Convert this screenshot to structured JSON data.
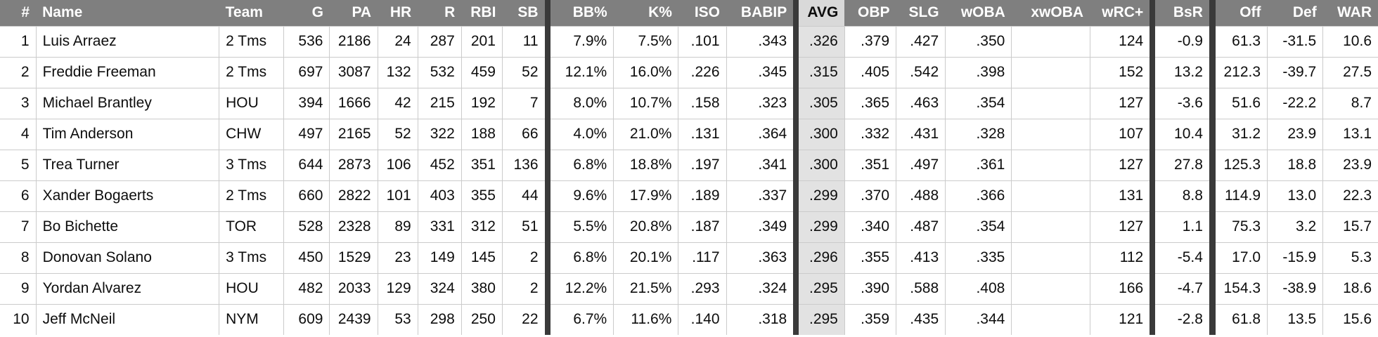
{
  "table": {
    "description": "Batting statistics leaderboard sorted by AVG",
    "sorted_column": "AVG",
    "colors": {
      "header_bg": "#7f7f7f",
      "header_text": "#ffffff",
      "sorted_header_bg": "#d9d9d9",
      "sorted_column_bg": "#e2e2e2",
      "group_separator": "#3a3a3a",
      "cell_border": "#cbcbcb",
      "row_bg": "#ffffff"
    },
    "columns": [
      {
        "key": "rank",
        "label": "#",
        "align": "right",
        "highlight": false,
        "sep_left": false,
        "sep_right": false
      },
      {
        "key": "name",
        "label": "Name",
        "align": "left",
        "highlight": false,
        "sep_left": false,
        "sep_right": false
      },
      {
        "key": "team",
        "label": "Team",
        "align": "left",
        "highlight": false,
        "sep_left": false,
        "sep_right": false
      },
      {
        "key": "g",
        "label": "G",
        "align": "right",
        "highlight": false,
        "sep_left": false,
        "sep_right": false
      },
      {
        "key": "pa",
        "label": "PA",
        "align": "right",
        "highlight": false,
        "sep_left": false,
        "sep_right": false
      },
      {
        "key": "hr",
        "label": "HR",
        "align": "right",
        "highlight": false,
        "sep_left": false,
        "sep_right": false
      },
      {
        "key": "r",
        "label": "R",
        "align": "right",
        "highlight": false,
        "sep_left": false,
        "sep_right": false
      },
      {
        "key": "rbi",
        "label": "RBI",
        "align": "right",
        "highlight": false,
        "sep_left": false,
        "sep_right": false
      },
      {
        "key": "sb",
        "label": "SB",
        "align": "right",
        "highlight": false,
        "sep_left": false,
        "sep_right": false
      },
      {
        "key": "bb_pct",
        "label": "BB%",
        "align": "right",
        "highlight": false,
        "sep_left": true,
        "sep_right": false
      },
      {
        "key": "k_pct",
        "label": "K%",
        "align": "right",
        "highlight": false,
        "sep_left": false,
        "sep_right": false
      },
      {
        "key": "iso",
        "label": "ISO",
        "align": "right",
        "highlight": false,
        "sep_left": false,
        "sep_right": false
      },
      {
        "key": "babip",
        "label": "BABIP",
        "align": "right",
        "highlight": false,
        "sep_left": false,
        "sep_right": false
      },
      {
        "key": "avg",
        "label": "AVG",
        "align": "right",
        "highlight": true,
        "sep_left": true,
        "sep_right": false
      },
      {
        "key": "obp",
        "label": "OBP",
        "align": "right",
        "highlight": false,
        "sep_left": false,
        "sep_right": false
      },
      {
        "key": "slg",
        "label": "SLG",
        "align": "right",
        "highlight": false,
        "sep_left": false,
        "sep_right": false
      },
      {
        "key": "woba",
        "label": "wOBA",
        "align": "right",
        "highlight": false,
        "sep_left": false,
        "sep_right": false
      },
      {
        "key": "xwoba",
        "label": "xwOBA",
        "align": "right",
        "highlight": false,
        "sep_left": false,
        "sep_right": false
      },
      {
        "key": "wrc_plus",
        "label": "wRC+",
        "align": "right",
        "highlight": false,
        "sep_left": false,
        "sep_right": false
      },
      {
        "key": "bsr",
        "label": "BsR",
        "align": "right",
        "highlight": false,
        "sep_left": true,
        "sep_right": true
      },
      {
        "key": "off",
        "label": "Off",
        "align": "right",
        "highlight": false,
        "sep_left": false,
        "sep_right": false
      },
      {
        "key": "def",
        "label": "Def",
        "align": "right",
        "highlight": false,
        "sep_left": false,
        "sep_right": false
      },
      {
        "key": "war",
        "label": "WAR",
        "align": "right",
        "highlight": false,
        "sep_left": false,
        "sep_right": false
      }
    ],
    "rows": [
      [
        "1",
        "Luis Arraez",
        "2 Tms",
        "536",
        "2186",
        "24",
        "287",
        "201",
        "11",
        "7.9%",
        "7.5%",
        ".101",
        ".343",
        ".326",
        ".379",
        ".427",
        ".350",
        "",
        "124",
        "-0.9",
        "61.3",
        "-31.5",
        "10.6"
      ],
      [
        "2",
        "Freddie Freeman",
        "2 Tms",
        "697",
        "3087",
        "132",
        "532",
        "459",
        "52",
        "12.1%",
        "16.0%",
        ".226",
        ".345",
        ".315",
        ".405",
        ".542",
        ".398",
        "",
        "152",
        "13.2",
        "212.3",
        "-39.7",
        "27.5"
      ],
      [
        "3",
        "Michael Brantley",
        "HOU",
        "394",
        "1666",
        "42",
        "215",
        "192",
        "7",
        "8.0%",
        "10.7%",
        ".158",
        ".323",
        ".305",
        ".365",
        ".463",
        ".354",
        "",
        "127",
        "-3.6",
        "51.6",
        "-22.2",
        "8.7"
      ],
      [
        "4",
        "Tim Anderson",
        "CHW",
        "497",
        "2165",
        "52",
        "322",
        "188",
        "66",
        "4.0%",
        "21.0%",
        ".131",
        ".364",
        ".300",
        ".332",
        ".431",
        ".328",
        "",
        "107",
        "10.4",
        "31.2",
        "23.9",
        "13.1"
      ],
      [
        "5",
        "Trea Turner",
        "3 Tms",
        "644",
        "2873",
        "106",
        "452",
        "351",
        "136",
        "6.8%",
        "18.8%",
        ".197",
        ".341",
        ".300",
        ".351",
        ".497",
        ".361",
        "",
        "127",
        "27.8",
        "125.3",
        "18.8",
        "23.9"
      ],
      [
        "6",
        "Xander Bogaerts",
        "2 Tms",
        "660",
        "2822",
        "101",
        "403",
        "355",
        "44",
        "9.6%",
        "17.9%",
        ".189",
        ".337",
        ".299",
        ".370",
        ".488",
        ".366",
        "",
        "131",
        "8.8",
        "114.9",
        "13.0",
        "22.3"
      ],
      [
        "7",
        "Bo Bichette",
        "TOR",
        "528",
        "2328",
        "89",
        "331",
        "312",
        "51",
        "5.5%",
        "20.8%",
        ".187",
        ".349",
        ".299",
        ".340",
        ".487",
        ".354",
        "",
        "127",
        "1.1",
        "75.3",
        "3.2",
        "15.7"
      ],
      [
        "8",
        "Donovan Solano",
        "3 Tms",
        "450",
        "1529",
        "23",
        "149",
        "145",
        "2",
        "6.8%",
        "20.1%",
        ".117",
        ".363",
        ".296",
        ".355",
        ".413",
        ".335",
        "",
        "112",
        "-5.4",
        "17.0",
        "-15.9",
        "5.3"
      ],
      [
        "9",
        "Yordan Alvarez",
        "HOU",
        "482",
        "2033",
        "129",
        "324",
        "380",
        "2",
        "12.2%",
        "21.5%",
        ".293",
        ".324",
        ".295",
        ".390",
        ".588",
        ".408",
        "",
        "166",
        "-4.7",
        "154.3",
        "-38.9",
        "18.6"
      ],
      [
        "10",
        "Jeff McNeil",
        "NYM",
        "609",
        "2439",
        "53",
        "298",
        "250",
        "22",
        "6.7%",
        "11.6%",
        ".140",
        ".318",
        ".295",
        ".359",
        ".435",
        ".344",
        "",
        "121",
        "-2.8",
        "61.8",
        "13.5",
        "15.6"
      ]
    ]
  }
}
